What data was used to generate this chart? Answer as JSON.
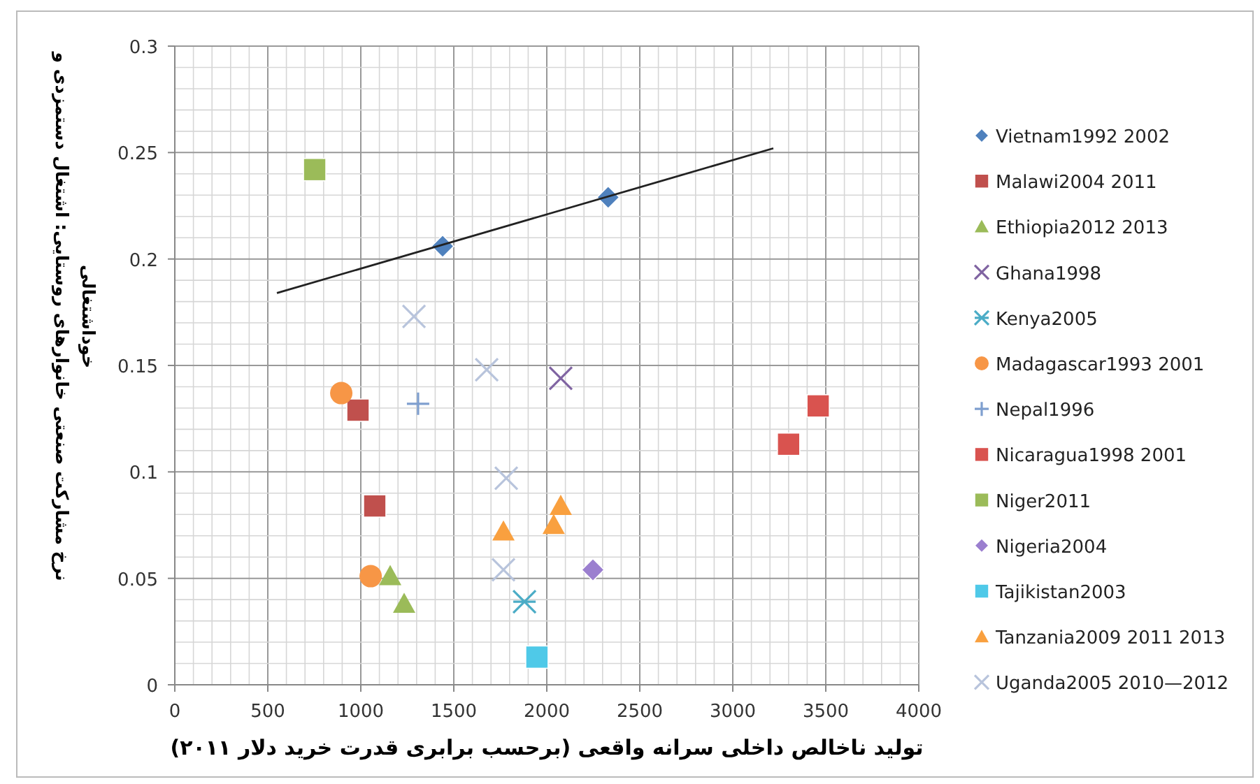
{
  "chart_data": {
    "type": "scatter",
    "xlabel": "تولید ناخالص داخلی سرانه واقعی (برحسب برابری قدرت خرید دلار ۲۰۱۱)",
    "ylabel": "نرخ مشارکت صنعتی  خانوارهای روستایی: اشتغال دستمزدی و خوداشتغالی",
    "xlim": [
      0,
      4000
    ],
    "xticks": [
      0,
      500,
      1000,
      1500,
      2000,
      2500,
      3000,
      3500,
      4000
    ],
    "ylim": [
      0,
      0.3
    ],
    "yticks": [
      {
        "value": 0,
        "label": "0"
      },
      0.05,
      0.1,
      0.15,
      0.2,
      0.25,
      0.3
    ],
    "grid": true,
    "legend": "right",
    "series": [
      {
        "name": "Vietnam1992 2002",
        "color": "#4f81bd",
        "marker": "diamond",
        "x": [
          1440,
          2330
        ],
        "values": [
          0.206,
          0.229
        ]
      },
      {
        "name": "Malawi2004 2011",
        "color": "#c0504d",
        "marker": "square",
        "x": [
          985,
          1075
        ],
        "values": [
          0.129,
          0.084
        ]
      },
      {
        "name": "Ethiopia2012 2013",
        "color": "#9bbb59",
        "marker": "triangle",
        "x": [
          1158,
          1233
        ],
        "values": [
          0.051,
          0.038
        ]
      },
      {
        "name": "Ghana1998",
        "color": "#8064a2",
        "marker": "x",
        "x": [
          2075
        ],
        "values": [
          0.144
        ]
      },
      {
        "name": "Kenya2005",
        "color": "#4bacc6",
        "marker": "cross",
        "x": [
          1880
        ],
        "values": [
          0.039
        ]
      },
      {
        "name": "Madagascar1993 2001",
        "color": "#f79646",
        "marker": "circle",
        "x": [
          895,
          1053
        ],
        "values": [
          0.137,
          0.051
        ]
      },
      {
        "name": "Nepal1996",
        "color": "#7f9fcf",
        "marker": "plus",
        "x": [
          1308
        ],
        "values": [
          0.132
        ]
      },
      {
        "name": "Nicaragua1998 2001",
        "color": "#d9534f",
        "marker": "square",
        "x": [
          3300,
          3459
        ],
        "values": [
          0.113,
          0.131
        ]
      },
      {
        "name": "Niger2011",
        "color": "#9bbb59",
        "marker": "square",
        "x": [
          752
        ],
        "values": [
          0.242
        ]
      },
      {
        "name": "Nigeria2004",
        "color": "#9b7fcf",
        "marker": "diamond",
        "x": [
          2248
        ],
        "values": [
          0.054
        ]
      },
      {
        "name": "Tajikistan2003",
        "color": "#4fc9e8",
        "marker": "square",
        "x": [
          1947
        ],
        "values": [
          0.013
        ]
      },
      {
        "name": "Tanzania2009 2011 2013",
        "color": "#f9a03f",
        "marker": "triangle",
        "x": [
          1767,
          2037,
          2075
        ],
        "values": [
          0.072,
          0.075,
          0.084
        ]
      },
      {
        "name": "Uganda2005 2010—2012",
        "color": "#b8c4dc",
        "marker": "x",
        "x": [
          1286,
          1677,
          1782,
          1767
        ],
        "values": [
          0.173,
          0.148,
          0.097,
          0.054
        ]
      },
      {
        "type": "line",
        "color": "#222222",
        "x": [
          549,
          3218
        ],
        "values": [
          0.184,
          0.252
        ]
      }
    ]
  }
}
